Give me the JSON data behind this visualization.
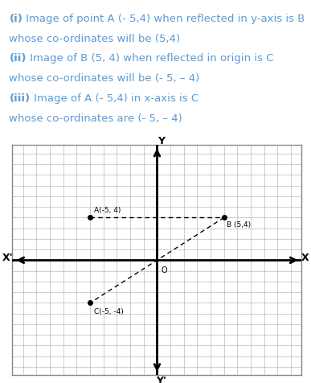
{
  "text_lines": [
    {
      "bold_part": "(i)",
      "normal_part": " Image of point A (- 5,4) when reflected in y-axis is B"
    },
    {
      "bold_part": "",
      "normal_part": "whose co-ordinates will be (5,4)"
    },
    {
      "bold_part": "(ii)",
      "normal_part": " Image of B (5, 4) when reflected in origin is C"
    },
    {
      "bold_part": "",
      "normal_part": "whose co-ordinates will be (- 5, – 4)"
    },
    {
      "bold_part": "(iii)",
      "normal_part": " Image of A (- 5,4) in x-axis is C"
    },
    {
      "bold_part": "",
      "normal_part": "whose co-ordinates are (- 5, – 4)"
    }
  ],
  "text_color": "#5B9BD5",
  "text_fontsize": 9.5,
  "points": {
    "A": [
      -5,
      4
    ],
    "B": [
      5,
      4
    ],
    "C": [
      -5,
      -4
    ]
  },
  "axis_min": -10,
  "axis_max": 10,
  "grid_color": "#aaaaaa",
  "grid_lw": 0.4,
  "axis_color": "#000000",
  "axis_lw": 2.0,
  "border_color": "#888888",
  "point_color": "#000000",
  "point_size": 4,
  "dashed_color": "#000000",
  "dashed_lw": 1.0,
  "origin_label": "O",
  "x_label": "X",
  "xp_label": "X'",
  "y_label": "Y",
  "yp_label": "Y'",
  "label_A": "A(-5, 4)",
  "label_B": "B (5,4)",
  "label_C": "C(-5, -4)"
}
